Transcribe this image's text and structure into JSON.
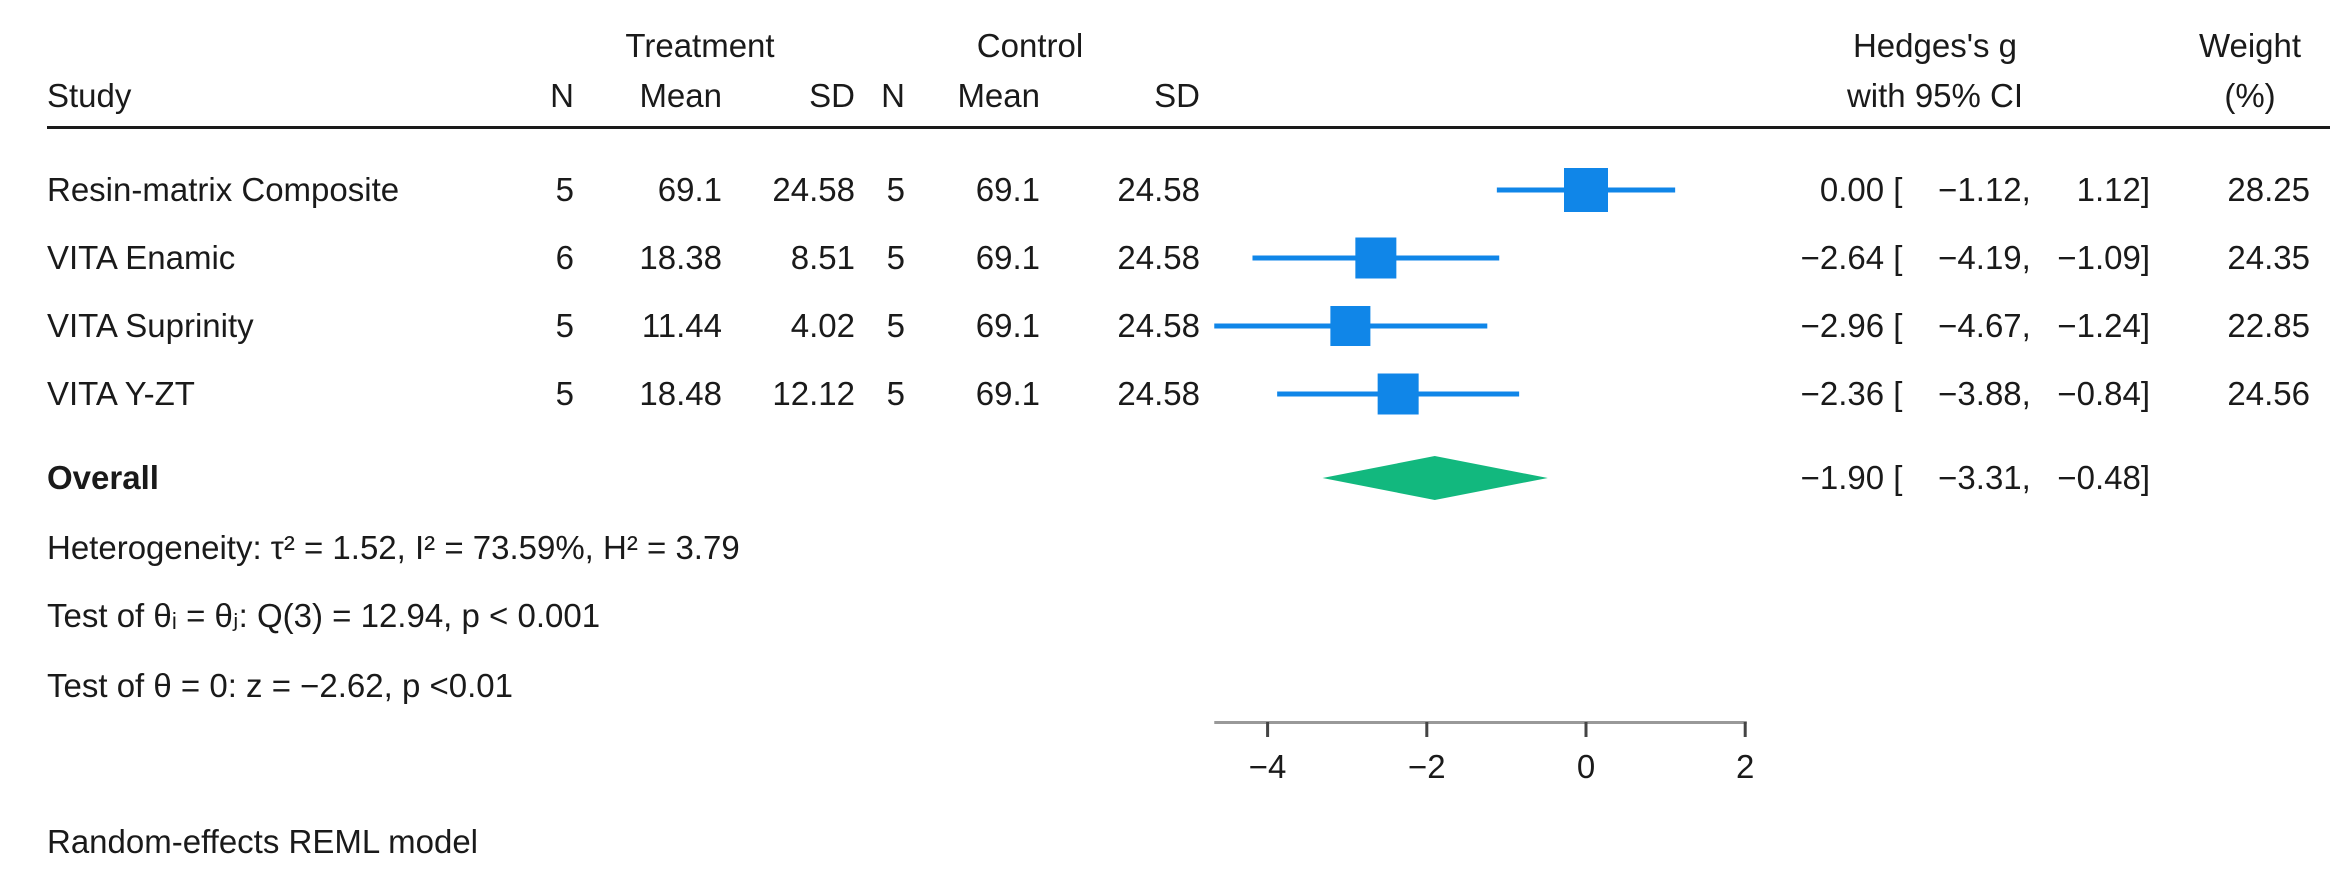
{
  "header": {
    "study": "Study",
    "treatment_group": "Treatment",
    "control_group": "Control",
    "n_t": "N",
    "mean_t": "Mean",
    "sd_t": "SD",
    "n_c": "N",
    "mean_c": "Mean",
    "sd_c": "SD",
    "effect_line1": "Hedges's g",
    "effect_line2": "with 95% CI",
    "weight_line1": "Weight",
    "weight_line2": "(%)"
  },
  "punct": {
    "open": " [ ",
    "comma": ",",
    "close": "]"
  },
  "studies": [
    {
      "name": "Resin-matrix Composite",
      "n_t": "5",
      "mean_t": "69.1",
      "sd_t": "24.58",
      "n_c": "5",
      "mean_c": "69.1",
      "sd_c": "24.58",
      "est": "0.00",
      "lo": "−1.12",
      "hi": "1.12",
      "weight": "28.25"
    },
    {
      "name": "VITA Enamic",
      "n_t": "6",
      "mean_t": "18.38",
      "sd_t": "8.51",
      "n_c": "5",
      "mean_c": "69.1",
      "sd_c": "24.58",
      "est": "−2.64",
      "lo": "−4.19",
      "hi": "−1.09",
      "weight": "24.35"
    },
    {
      "name": "VITA Suprinity",
      "n_t": "5",
      "mean_t": "11.44",
      "sd_t": "4.02",
      "n_c": "5",
      "mean_c": "69.1",
      "sd_c": "24.58",
      "est": "−2.96",
      "lo": "−4.67",
      "hi": "−1.24",
      "weight": "22.85"
    },
    {
      "name": "VITA Y-ZT",
      "n_t": "5",
      "mean_t": "18.48",
      "sd_t": "12.12",
      "n_c": "5",
      "mean_c": "69.1",
      "sd_c": "24.58",
      "est": "−2.36",
      "lo": "−3.88",
      "hi": "−0.84",
      "weight": "24.56"
    }
  ],
  "overall": {
    "label": "Overall",
    "est": "−1.90",
    "lo": "−3.31",
    "hi": "−0.48"
  },
  "notes": {
    "heterogeneity": "Heterogeneity: τ² = 1.52, I² = 73.59%, H² = 3.79",
    "test_group": "Test of θᵢ = θⱼ: Q(3) = 12.94, p < 0.001",
    "test_zero": "Test of θ = 0: z = −2.62, p <0.01",
    "model": "Random-effects REML model"
  },
  "chart_data": {
    "type": "forest",
    "effect_label": "Hedges's g with 95% CI",
    "axis": {
      "ticks": [
        -4,
        -2,
        0,
        2
      ],
      "range": [
        -4.67,
        2.02
      ],
      "grid": false
    },
    "studies": [
      {
        "name": "Resin-matrix Composite",
        "g": 0.0,
        "ci": [
          -1.12,
          1.12
        ],
        "weight": 28.25
      },
      {
        "name": "VITA Enamic",
        "g": -2.64,
        "ci": [
          -4.19,
          -1.09
        ],
        "weight": 24.35
      },
      {
        "name": "VITA Suprinity",
        "g": -2.96,
        "ci": [
          -4.67,
          -1.24
        ],
        "weight": 22.85
      },
      {
        "name": "VITA Y-ZT",
        "g": -2.36,
        "ci": [
          -3.88,
          -0.84
        ],
        "weight": 24.56
      }
    ],
    "overall": {
      "g": -1.9,
      "ci": [
        -3.31,
        -0.48
      ]
    },
    "heterogeneity": {
      "tau2": 1.52,
      "I2_pct": 73.59,
      "H2": 3.79,
      "Q": 12.94,
      "Q_df": 3,
      "p_Q": "< 0.001",
      "z": -2.62,
      "p_z": "<0.01"
    },
    "model": "Random-effects REML model",
    "colors": {
      "marker": "#1086e8",
      "diamond": "#12b87e",
      "axis": "#999999",
      "tick": "#444444",
      "text": "#1a1a1a"
    }
  }
}
